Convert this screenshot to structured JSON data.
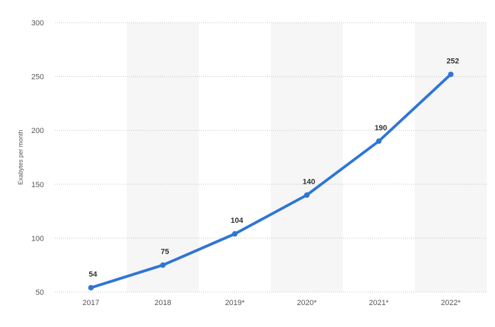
{
  "chart_data": {
    "type": "line",
    "categories": [
      "2017",
      "2018",
      "2019*",
      "2020*",
      "2021*",
      "2022*"
    ],
    "series": [
      {
        "values": [
          54,
          75,
          104,
          140,
          190,
          252
        ]
      }
    ],
    "ylabel": "Exabytes per month",
    "ylim": [
      50,
      300
    ],
    "yticks": [
      50,
      100,
      150,
      200,
      250,
      300
    ],
    "grid": true,
    "data_labels": true,
    "line_color": "#2f75d6",
    "band_color": "#f6f6f6",
    "gridline_color": "#bdbdbd",
    "label_color": "#333333",
    "axis_text_color": "#555555"
  }
}
